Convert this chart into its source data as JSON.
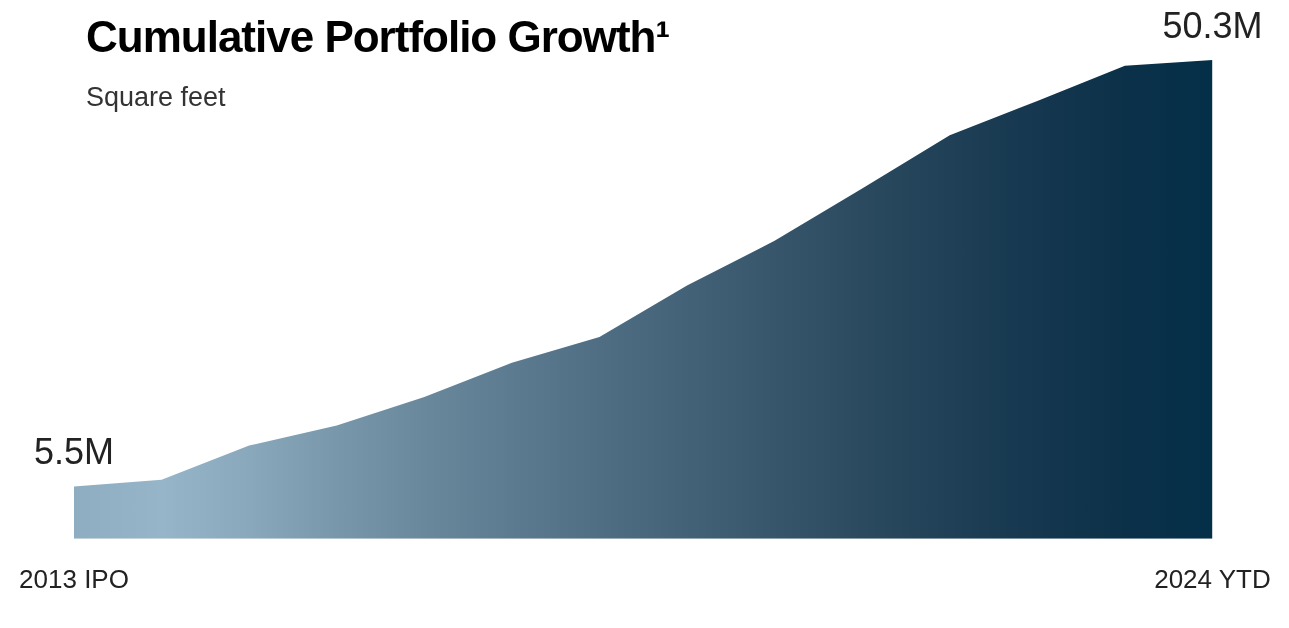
{
  "chart_data": {
    "type": "area",
    "title": "Cumulative Portfolio Growth¹",
    "subtitle": "Square feet",
    "categories": [
      "2013 IPO",
      null,
      null,
      null,
      null,
      null,
      null,
      null,
      null,
      null,
      null,
      null,
      null,
      "2024 YTD"
    ],
    "values": [
      5.5,
      6.2,
      9.8,
      11.9,
      14.9,
      18.5,
      21.2,
      26.6,
      31.3,
      36.8,
      42.4,
      46.0,
      49.7,
      50.3
    ],
    "value_labels": [
      "5.5M",
      null,
      null,
      null,
      null,
      null,
      null,
      null,
      null,
      null,
      null,
      null,
      null,
      "50.3M"
    ],
    "colors": [
      "#8fadc0",
      "#97b5c8",
      "#8aa8bc",
      "#7897ab",
      "#6a889c",
      "#5d7b90",
      "#4f6d83",
      "#436277",
      "#37566b",
      "#2b4a60",
      "#1f4056",
      "#15374f",
      "#0b3149",
      "#042f48"
    ],
    "tick_labels": "x",
    "grid": false,
    "legend": false
  }
}
